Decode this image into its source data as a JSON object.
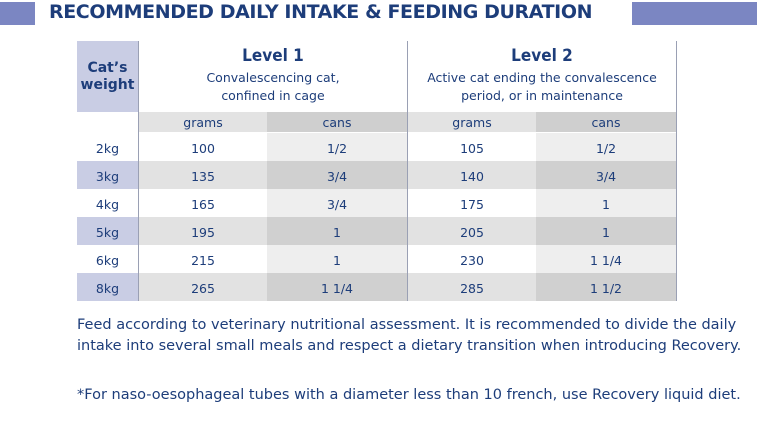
{
  "title": "RECOMMENDED DAILY INTAKE & FEEDING DURATION",
  "table": {
    "weight_header_line1": "Cat’s",
    "weight_header_line2": "weight",
    "level1": {
      "title": "Level 1",
      "desc_line1": "Convalescencing cat,",
      "desc_line2": "confined in cage"
    },
    "level2": {
      "title": "Level 2",
      "desc_line1": "Active cat ending the convalescence",
      "desc_line2": "period, or in maintenance"
    },
    "sub_grams": "grams",
    "sub_cans": "cans",
    "rows": [
      {
        "weight": "2kg",
        "grams1": "100",
        "cans1": "1/2",
        "grams2": "105",
        "cans2": "1/2"
      },
      {
        "weight": "3kg",
        "grams1": "135",
        "cans1": "3/4",
        "grams2": "140",
        "cans2": "3/4"
      },
      {
        "weight": "4kg",
        "grams1": "165",
        "cans1": "3/4",
        "grams2": "175",
        "cans2": "1"
      },
      {
        "weight": "5kg",
        "grams1": "195",
        "cans1": "1",
        "grams2": "205",
        "cans2": "1"
      },
      {
        "weight": "6kg",
        "grams1": "215",
        "cans1": "1",
        "grams2": "230",
        "cans2": "1 1/4"
      },
      {
        "weight": "8kg",
        "grams1": "265",
        "cans1": "1 1/4",
        "grams2": "285",
        "cans2": "1 1/2"
      }
    ]
  },
  "footer": {
    "paragraph1": "Feed according to veterinary nutritional assessment. It is recommended to divide the daily intake into several small meals and respect a dietary transition when introducing Recovery.",
    "paragraph2": "*For naso-oesophageal tubes with a diameter less than 10 french, use Recovery liquid diet."
  },
  "colors": {
    "text": "#1d3d7a",
    "title_bar": "#7b86c2",
    "weight_column": "#c9cde4",
    "table_grey_light": "#e3e3e3",
    "table_grey_dark": "#cfcfcf"
  }
}
